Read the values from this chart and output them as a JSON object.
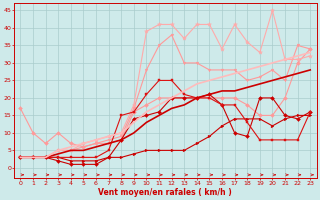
{
  "xlabel": "Vent moyen/en rafales ( km/h )",
  "xlim": [
    -0.5,
    23.5
  ],
  "ylim": [
    -3,
    47
  ],
  "yticks": [
    0,
    5,
    10,
    15,
    20,
    25,
    30,
    35,
    40,
    45
  ],
  "xticks": [
    0,
    1,
    2,
    3,
    4,
    5,
    6,
    7,
    8,
    9,
    10,
    11,
    12,
    13,
    14,
    15,
    16,
    17,
    18,
    19,
    20,
    21,
    22,
    23
  ],
  "background_color": "#ceeaea",
  "grid_color": "#aacccc",
  "series": [
    {
      "x": [
        0,
        1,
        2,
        3,
        4,
        5,
        6,
        7,
        8,
        9,
        10,
        11,
        12,
        13,
        14,
        15,
        16,
        17,
        18,
        19,
        20,
        21,
        22,
        23
      ],
      "y": [
        3,
        3,
        3,
        3,
        2,
        2,
        2,
        3,
        3,
        4,
        5,
        5,
        5,
        5,
        7,
        9,
        12,
        14,
        14,
        14,
        12,
        14,
        15,
        15
      ],
      "color": "#cc0000",
      "linewidth": 0.8,
      "marker": ">",
      "markersize": 2,
      "linestyle": "-",
      "zorder": 3
    },
    {
      "x": [
        0,
        1,
        2,
        3,
        4,
        5,
        6,
        7,
        8,
        9,
        10,
        11,
        12,
        13,
        14,
        15,
        16,
        17,
        18,
        19,
        20,
        21,
        22,
        23
      ],
      "y": [
        3,
        3,
        3,
        2,
        1,
        1,
        1,
        3,
        8,
        14,
        15,
        16,
        20,
        20,
        20,
        21,
        18,
        10,
        9,
        20,
        20,
        15,
        14,
        16
      ],
      "color": "#cc0000",
      "linewidth": 0.8,
      "marker": "D",
      "markersize": 2,
      "linestyle": "-",
      "zorder": 3
    },
    {
      "x": [
        0,
        1,
        2,
        3,
        4,
        5,
        6,
        7,
        8,
        9,
        10,
        11,
        12,
        13,
        14,
        15,
        16,
        17,
        18,
        19,
        20,
        21,
        22,
        23
      ],
      "y": [
        3,
        3,
        3,
        3,
        3,
        3,
        3,
        5,
        15,
        16,
        21,
        25,
        25,
        21,
        20,
        20,
        18,
        18,
        13,
        8,
        8,
        8,
        8,
        16
      ],
      "color": "#dd1111",
      "linewidth": 0.8,
      "marker": "s",
      "markersize": 2,
      "linestyle": "-",
      "zorder": 3
    },
    {
      "x": [
        0,
        1,
        2,
        3,
        4,
        5,
        6,
        7,
        8,
        9,
        10,
        11,
        12,
        13,
        14,
        15,
        16,
        17,
        18,
        19,
        20,
        21,
        22,
        23
      ],
      "y": [
        17,
        10,
        7,
        10,
        7,
        6,
        7,
        7,
        8,
        16,
        18,
        20,
        20,
        20,
        20,
        20,
        20,
        20,
        18,
        15,
        15,
        20,
        30,
        34
      ],
      "color": "#ff9999",
      "linewidth": 0.8,
      "marker": "D",
      "markersize": 2,
      "linestyle": "-",
      "zorder": 2
    },
    {
      "x": [
        0,
        1,
        2,
        3,
        4,
        5,
        6,
        7,
        8,
        9,
        10,
        11,
        12,
        13,
        14,
        15,
        16,
        17,
        18,
        19,
        20,
        21,
        22,
        23
      ],
      "y": [
        3,
        3,
        3,
        5,
        5,
        6,
        7,
        8,
        9,
        17,
        28,
        35,
        38,
        30,
        30,
        28,
        28,
        28,
        25,
        26,
        28,
        25,
        35,
        34
      ],
      "color": "#ff9999",
      "linewidth": 0.8,
      "marker": "v",
      "markersize": 2,
      "linestyle": "-",
      "zorder": 2
    },
    {
      "x": [
        0,
        1,
        2,
        3,
        4,
        5,
        6,
        7,
        8,
        9,
        10,
        11,
        12,
        13,
        14,
        15,
        16,
        17,
        18,
        19,
        20,
        21,
        22,
        23
      ],
      "y": [
        3,
        3,
        3,
        5,
        5,
        7,
        8,
        9,
        10,
        18,
        39,
        41,
        41,
        37,
        41,
        41,
        34,
        41,
        36,
        33,
        45,
        31,
        31,
        32
      ],
      "color": "#ffaaaa",
      "linewidth": 0.8,
      "marker": "*",
      "markersize": 3,
      "linestyle": "-",
      "zorder": 2
    },
    {
      "x": [
        0,
        1,
        2,
        3,
        4,
        5,
        6,
        7,
        8,
        9,
        10,
        11,
        12,
        13,
        14,
        15,
        16,
        17,
        18,
        19,
        20,
        21,
        22,
        23
      ],
      "y": [
        3,
        3,
        3,
        4,
        5,
        5,
        6,
        7,
        8,
        10,
        13,
        15,
        17,
        18,
        20,
        21,
        22,
        22,
        23,
        24,
        25,
        26,
        27,
        28
      ],
      "color": "#cc0000",
      "linewidth": 1.2,
      "marker": null,
      "markersize": 0,
      "linestyle": "-",
      "zorder": 4
    },
    {
      "x": [
        0,
        1,
        2,
        3,
        4,
        5,
        6,
        7,
        8,
        9,
        10,
        11,
        12,
        13,
        14,
        15,
        16,
        17,
        18,
        19,
        20,
        21,
        22,
        23
      ],
      "y": [
        3,
        3,
        3,
        5,
        6,
        7,
        8,
        9,
        10,
        13,
        16,
        18,
        20,
        22,
        24,
        25,
        26,
        27,
        28,
        29,
        30,
        31,
        32,
        33
      ],
      "color": "#ffbbbb",
      "linewidth": 1.2,
      "marker": null,
      "markersize": 0,
      "linestyle": "-",
      "zorder": 4
    }
  ],
  "arrow_color": "#cc0000"
}
